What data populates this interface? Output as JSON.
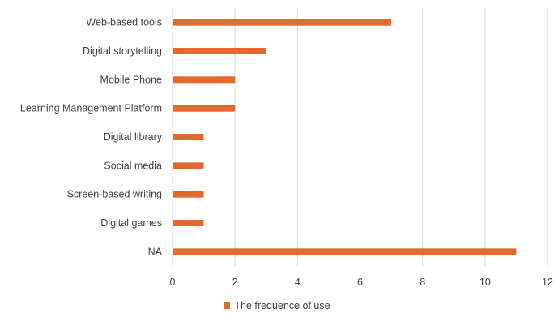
{
  "chart_data": {
    "type": "bar",
    "orientation": "horizontal",
    "title": "",
    "xlabel": "",
    "ylabel": "",
    "categories": [
      "Web-based tools",
      "Digital storytelling",
      "Mobile Phone",
      "Learning Management Platform",
      "Digital library",
      "Social media",
      "Screen-based writing",
      "Digital games",
      "NA"
    ],
    "series": [
      {
        "name": "The frequence of use",
        "values": [
          7,
          3,
          2,
          2,
          1,
          1,
          1,
          1,
          11
        ],
        "color": "#e36a2e"
      }
    ],
    "xlim": [
      0,
      12
    ],
    "xticks": [
      0,
      2,
      4,
      6,
      8,
      10,
      12
    ],
    "grid": "vertical",
    "legend_position": "bottom"
  }
}
